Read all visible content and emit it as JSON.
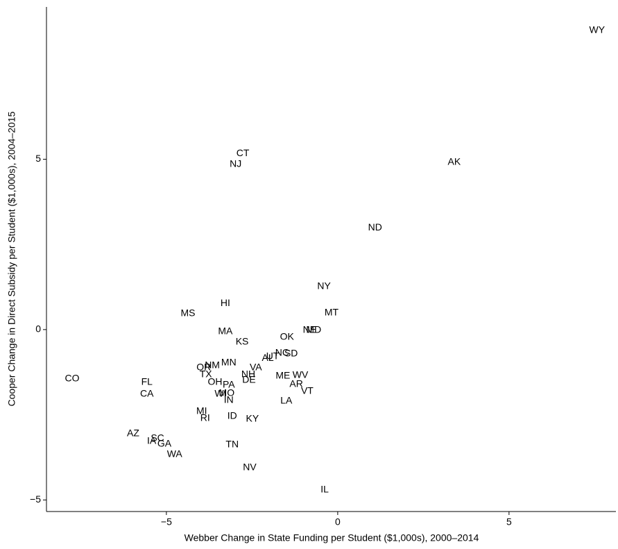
{
  "chart_data": {
    "type": "scatter",
    "x_label": "Webber Change in State Funding per Student ($1,000s), 2000–2014",
    "y_label": "Cooper Change in Direct Subsidy per Student ($1,000s), 2004–2015",
    "point_labels": [
      "WY",
      "CT",
      "NJ",
      "AK",
      "ND",
      "NY",
      "MT",
      "HI",
      "MS",
      "NE",
      "MD",
      "MA",
      "OK",
      "KS",
      "NC",
      "SD",
      "AL",
      "UT",
      "MN",
      "VA",
      "OR",
      "NM",
      "TX",
      "NH",
      "DE",
      "ME",
      "WV",
      "OH",
      "PA",
      "AR",
      "VT",
      "CO",
      "FL",
      "CA",
      "WI",
      "MO",
      "IN",
      "LA",
      "MI",
      "RI",
      "ID",
      "KY",
      "AZ",
      "IA",
      "SC",
      "GA",
      "WA",
      "TN",
      "NV",
      "IL"
    ],
    "x": [
      7.57,
      -2.77,
      -2.98,
      3.4,
      1.09,
      -0.4,
      -0.18,
      -3.28,
      -4.37,
      -0.82,
      -0.7,
      -3.28,
      -1.48,
      -2.79,
      -1.62,
      -1.36,
      -2.04,
      -1.9,
      -3.18,
      -2.39,
      -3.91,
      -3.66,
      -3.85,
      -2.61,
      -2.59,
      -1.6,
      -1.09,
      -3.58,
      -3.18,
      -1.21,
      -0.89,
      -7.75,
      -5.57,
      -5.57,
      -3.42,
      -3.24,
      -3.18,
      -1.5,
      -3.97,
      -3.87,
      -3.08,
      -2.49,
      -5.97,
      -5.43,
      -5.26,
      -5.06,
      -4.76,
      -3.08,
      -2.57,
      -0.38
    ],
    "values": [
      8.78,
      5.17,
      4.85,
      4.91,
      2.99,
      1.26,
      0.49,
      0.77,
      0.47,
      -0.02,
      -0.02,
      -0.06,
      -0.22,
      -0.37,
      -0.69,
      -0.71,
      -0.84,
      -0.79,
      -0.98,
      -1.12,
      -1.12,
      -1.06,
      -1.32,
      -1.32,
      -1.49,
      -1.36,
      -1.34,
      -1.55,
      -1.63,
      -1.61,
      -1.81,
      -1.45,
      -1.55,
      -1.89,
      -1.89,
      -1.87,
      -2.08,
      -2.1,
      -2.4,
      -2.61,
      -2.55,
      -2.63,
      -3.05,
      -3.28,
      -3.2,
      -3.36,
      -3.67,
      -3.38,
      -4.05,
      -4.7
    ],
    "xlim": [
      -8.5,
      8.12
    ],
    "ylim": [
      -5.34,
      9.47
    ],
    "xticks": [
      {
        "value": -5,
        "label": "−5"
      },
      0,
      5
    ],
    "yticks": [
      {
        "value": -5,
        "label": "−5"
      },
      0,
      5
    ]
  }
}
